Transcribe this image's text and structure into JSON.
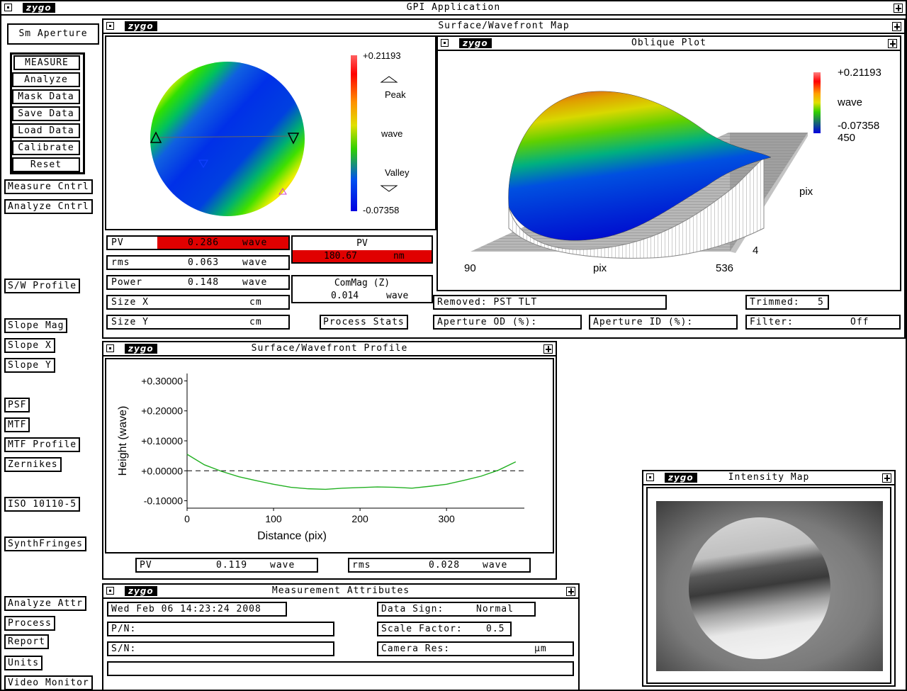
{
  "app": {
    "title": "GPI Application",
    "logo": "zygo"
  },
  "sidebar": {
    "aperture": "Sm Aperture",
    "main_buttons": [
      "MEASURE",
      "Analyze",
      "Mask Data",
      "Save Data",
      "Load Data",
      "Calibrate",
      "Reset"
    ],
    "measure_cntrl": "Measure Cntrl",
    "analyze_cntrl": "Analyze Cntrl",
    "sw_profile": "S/W Profile",
    "slope_mag": "Slope Mag",
    "slope_x": "Slope X",
    "slope_y": "Slope Y",
    "psf": "PSF",
    "mtf": "MTF",
    "mtf_profile": "MTF Profile",
    "zernikes": "Zernikes",
    "iso": "ISO 10110-5",
    "synthfringes": "SynthFringes",
    "analyze_attr": "Analyze Attr",
    "process": "Process",
    "report": "Report",
    "units": "Units",
    "video_monitor": "Video Monitor"
  },
  "surface_map": {
    "title": "Surface/Wavefront Map",
    "scale_max": "+0.21193",
    "scale_min": "-0.07358",
    "peak": "Peak",
    "unit": "wave",
    "valley": "Valley",
    "pv": {
      "label": "PV",
      "value": "0.286",
      "unit": "wave"
    },
    "rms": {
      "label": "rms",
      "value": "0.063",
      "unit": "wave"
    },
    "power": {
      "label": "Power",
      "value": "0.148",
      "unit": "wave"
    },
    "size_x": {
      "label": "Size X",
      "unit": "cm"
    },
    "size_y": {
      "label": "Size Y",
      "unit": "cm"
    },
    "pv_nm": {
      "label": "PV",
      "value": "180.67",
      "unit": "nm"
    },
    "commag": {
      "label": "ComMag (Z)",
      "value": "0.014",
      "unit": "wave"
    },
    "process_stats": "Process Stats",
    "removed": "Removed: PST TLT",
    "trimmed": {
      "label": "Trimmed:",
      "value": "5"
    },
    "aperture_od": "Aperture OD (%):",
    "aperture_id": "Aperture ID (%):",
    "filter": {
      "label": "Filter:",
      "value": "Off"
    }
  },
  "oblique": {
    "title": "Oblique Plot",
    "scale_max": "+0.21193",
    "unit": "wave",
    "scale_min": "-0.07358",
    "y_max": "450",
    "y_label": "pix",
    "y_min": "4",
    "x_min": "90",
    "x_label": "pix",
    "x_max": "536"
  },
  "profile": {
    "title": "Surface/Wavefront Profile",
    "pv": {
      "label": "PV",
      "value": "0.119",
      "unit": "wave"
    },
    "rms": {
      "label": "rms",
      "value": "0.028",
      "unit": "wave"
    }
  },
  "chart_data": {
    "type": "line",
    "title": "Surface/Wavefront Profile",
    "xlabel": "Distance (pix)",
    "ylabel": "Height (wave)",
    "xlim": [
      0,
      390
    ],
    "ylim": [
      -0.12,
      0.32
    ],
    "xticks": [
      "0",
      "100",
      "200",
      "300"
    ],
    "yticks": [
      "+0.30000",
      "+0.20000",
      "+0.10000",
      "+0.00000",
      "-0.10000"
    ],
    "x": [
      0,
      20,
      40,
      60,
      80,
      100,
      120,
      140,
      160,
      180,
      200,
      220,
      240,
      260,
      280,
      300,
      320,
      340,
      360,
      380
    ],
    "y": [
      0.055,
      0.02,
      -0.002,
      -0.02,
      -0.033,
      -0.045,
      -0.055,
      -0.06,
      -0.062,
      -0.058,
      -0.056,
      -0.054,
      -0.055,
      -0.058,
      -0.052,
      -0.045,
      -0.032,
      -0.018,
      0.002,
      0.03
    ],
    "series_color": "#22b022",
    "zero_line": "dashed"
  },
  "intensity": {
    "title": "Intensity Map"
  },
  "attributes": {
    "title": "Measurement Attributes",
    "date": "Wed Feb 06 14:23:24 2008",
    "pn": "P/N:",
    "sn": "S/N:",
    "data_sign": {
      "label": "Data Sign:",
      "value": "Normal"
    },
    "scale_factor": {
      "label": "Scale Factor:",
      "value": "0.5"
    },
    "camera_res": {
      "label": "Camera Res:",
      "unit": "µm"
    }
  },
  "colors": {
    "alert_red": "#e00000",
    "plot_green": "#22b022"
  }
}
